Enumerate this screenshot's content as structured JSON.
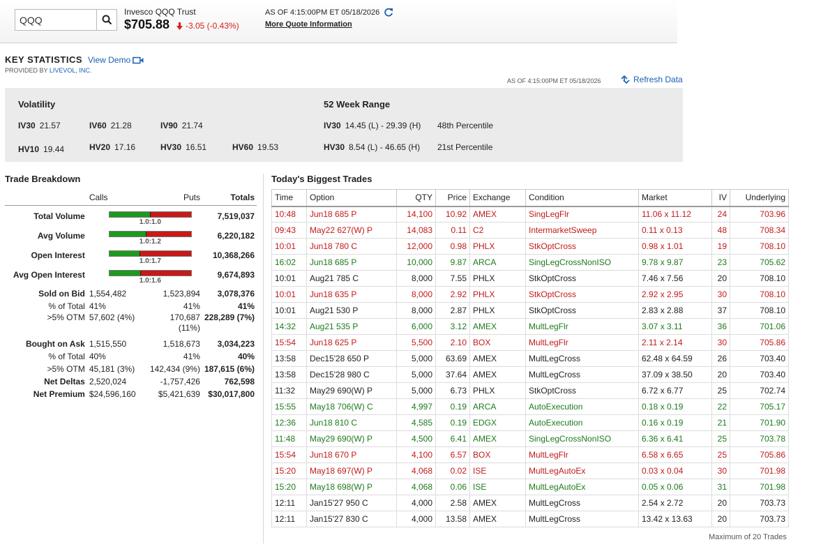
{
  "quote": {
    "search_value": "QQQ",
    "name": "Invesco QQQ Trust",
    "price": "$705.88",
    "change": "-3.05 (-0.43%)",
    "asof": "AS OF 4:15:00PM ET 05/18/2026",
    "more_link": "More Quote Information"
  },
  "key_stats": {
    "title": "KEY STATISTICS",
    "view_demo": "View Demo",
    "provided_prefix": "PROVIDED BY ",
    "provider": "LIVEVOL, INC.",
    "asof": "AS OF 4:15:00PM ET 05/18/2026",
    "refresh": "Refresh Data"
  },
  "volatility": {
    "heading": "Volatility",
    "iv30_label": "IV30",
    "iv30": "21.57",
    "iv60_label": "IV60",
    "iv60": "21.28",
    "iv90_label": "IV90",
    "iv90": "21.74",
    "hv10_label": "HV10",
    "hv10": "19.44",
    "hv20_label": "HV20",
    "hv20": "17.16",
    "hv30_label": "HV30",
    "hv30": "16.51",
    "hv60_label": "HV60",
    "hv60": "19.53"
  },
  "range52": {
    "heading": "52 Week Range",
    "iv30_label": "IV30",
    "iv30": "14.45 (L) - 29.39 (H)",
    "iv30_pct": "48th  Percentile",
    "hv30_label": "HV30",
    "hv30": "8.54 (L) - 46.65 (H)",
    "hv30_pct": "21st  Percentile"
  },
  "trade_breakdown": {
    "title": "Trade Breakdown",
    "headers": {
      "calls": "Calls",
      "puts": "Puts",
      "totals": "Totals"
    },
    "bar_rows": [
      {
        "label": "Total Volume",
        "ratio": "1.0:1.0",
        "calls_fraction": 0.5,
        "total": "7,519,037"
      },
      {
        "label": "Avg Volume",
        "ratio": "1.0:1.2",
        "calls_fraction": 0.45,
        "total": "6,220,182"
      },
      {
        "label": "Open Interest",
        "ratio": "1.0:1.7",
        "calls_fraction": 0.37,
        "total": "10,368,266"
      },
      {
        "label": "Avg Open Interest",
        "ratio": "1.0:1.6",
        "calls_fraction": 0.38,
        "total": "9,674,893"
      }
    ],
    "sold": {
      "label": "Sold on Bid",
      "calls": "1,554,482",
      "puts": "1,523,894",
      "total": "3,078,376",
      "pct_label": "% of Total",
      "pct_calls": "41%",
      "pct_puts": "41%",
      "pct_total": "41%",
      "otm_label": ">5% OTM",
      "otm_calls": "57,602 (4%)",
      "otm_puts": "170,687",
      "otm_puts2": "(11%)",
      "otm_total": "228,289 (7%)"
    },
    "bought": {
      "label": "Bought on Ask",
      "calls": "1,515,550",
      "puts": "1,518,673",
      "total": "3,034,223",
      "pct_label": "% of Total",
      "pct_calls": "40%",
      "pct_puts": "41%",
      "pct_total": "40%",
      "otm_label": ">5% OTM",
      "otm_calls": "45,181 (3%)",
      "otm_puts": "142,434 (9%)",
      "otm_total": "187,615 (6%)"
    },
    "net_deltas": {
      "label": "Net Deltas",
      "calls": "2,520,024",
      "puts": "-1,757,426",
      "total": "762,598"
    },
    "net_premium": {
      "label": "Net Premium",
      "calls": "$24,596,160",
      "puts": "$5,421,639",
      "total": "$30,017,800"
    }
  },
  "biggest_trades": {
    "title": "Today's Biggest Trades",
    "headers": [
      "Time",
      "Option",
      "QTY",
      "Price",
      "Exchange",
      "Condition",
      "Market",
      "IV",
      "Underlying"
    ],
    "rows": [
      {
        "color": "red",
        "time": "10:48",
        "option": "Jun18 685 P",
        "qty": "14,100",
        "price": "10.92",
        "exchange": "AMEX",
        "condition": "SingLegFlr",
        "market": "11.06 x 11.12",
        "iv": "24",
        "underlying": "703.96"
      },
      {
        "color": "red",
        "time": "09:43",
        "option": "May22 627(W) P",
        "qty": "14,083",
        "price": "0.11",
        "exchange": "C2",
        "condition": "IntermarketSweep",
        "market": "0.11 x 0.13",
        "iv": "48",
        "underlying": "708.34"
      },
      {
        "color": "red",
        "time": "10:01",
        "option": "Jun18 780 C",
        "qty": "12,000",
        "price": "0.98",
        "exchange": "PHLX",
        "condition": "StkOptCross",
        "market": "0.98 x 1.01",
        "iv": "19",
        "underlying": "708.10"
      },
      {
        "color": "green",
        "time": "16:02",
        "option": "Jun18 685 P",
        "qty": "10,000",
        "price": "9.87",
        "exchange": "ARCA",
        "condition": "SingLegCrossNonISO",
        "market": "9.78 x 9.87",
        "iv": "23",
        "underlying": "705.62"
      },
      {
        "color": "black",
        "time": "10:01",
        "option": "Aug21 785 C",
        "qty": "8,000",
        "price": "7.55",
        "exchange": "PHLX",
        "condition": "StkOptCross",
        "market": "7.46 x 7.56",
        "iv": "20",
        "underlying": "708.10"
      },
      {
        "color": "red",
        "time": "10:01",
        "option": "Jun18 635 P",
        "qty": "8,000",
        "price": "2.92",
        "exchange": "PHLX",
        "condition": "StkOptCross",
        "market": "2.92 x 2.95",
        "iv": "30",
        "underlying": "708.10"
      },
      {
        "color": "black",
        "time": "10:01",
        "option": "Aug21 530 P",
        "qty": "8,000",
        "price": "2.87",
        "exchange": "PHLX",
        "condition": "StkOptCross",
        "market": "2.83 x 2.88",
        "iv": "37",
        "underlying": "708.10"
      },
      {
        "color": "green",
        "time": "14:32",
        "option": "Aug21 535 P",
        "qty": "6,000",
        "price": "3.12",
        "exchange": "AMEX",
        "condition": "MultLegFlr",
        "market": "3.07 x 3.11",
        "iv": "36",
        "underlying": "701.06"
      },
      {
        "color": "red",
        "time": "15:54",
        "option": "Jun18 625 P",
        "qty": "5,500",
        "price": "2.10",
        "exchange": "BOX",
        "condition": "MultLegFlr",
        "market": "2.11 x 2.14",
        "iv": "30",
        "underlying": "705.86"
      },
      {
        "color": "black",
        "time": "13:58",
        "option": "Dec15'28 650 P",
        "qty": "5,000",
        "price": "63.69",
        "exchange": "AMEX",
        "condition": "MultLegCross",
        "market": "62.48 x 64.59",
        "iv": "26",
        "underlying": "703.40"
      },
      {
        "color": "black",
        "time": "13:58",
        "option": "Dec15'28 980 C",
        "qty": "5,000",
        "price": "37.64",
        "exchange": "AMEX",
        "condition": "MultLegCross",
        "market": "37.09 x 38.50",
        "iv": "20",
        "underlying": "703.40"
      },
      {
        "color": "black",
        "time": "11:32",
        "option": "May29 690(W) P",
        "qty": "5,000",
        "price": "6.73",
        "exchange": "PHLX",
        "condition": "StkOptCross",
        "market": "6.72 x 6.77",
        "iv": "25",
        "underlying": "702.74"
      },
      {
        "color": "green",
        "time": "15:55",
        "option": "May18 706(W) C",
        "qty": "4,997",
        "price": "0.19",
        "exchange": "ARCA",
        "condition": "AutoExecution",
        "market": "0.18 x 0.19",
        "iv": "22",
        "underlying": "705.17"
      },
      {
        "color": "green",
        "time": "12:36",
        "option": "Jun18 810 C",
        "qty": "4,585",
        "price": "0.19",
        "exchange": "EDGX",
        "condition": "AutoExecution",
        "market": "0.16 x 0.19",
        "iv": "21",
        "underlying": "701.90"
      },
      {
        "color": "green",
        "time": "11:48",
        "option": "May29 690(W) P",
        "qty": "4,500",
        "price": "6.41",
        "exchange": "AMEX",
        "condition": "SingLegCrossNonISO",
        "market": "6.36 x 6.41",
        "iv": "25",
        "underlying": "703.78"
      },
      {
        "color": "red",
        "time": "15:54",
        "option": "Jun18 670 P",
        "qty": "4,100",
        "price": "6.57",
        "exchange": "BOX",
        "condition": "MultLegFlr",
        "market": "6.58 x 6.65",
        "iv": "25",
        "underlying": "705.86"
      },
      {
        "color": "red",
        "time": "15:20",
        "option": "May18 697(W) P",
        "qty": "4,068",
        "price": "0.02",
        "exchange": "ISE",
        "condition": "MultLegAutoEx",
        "market": "0.03 x 0.04",
        "iv": "30",
        "underlying": "701.98"
      },
      {
        "color": "green",
        "time": "15:20",
        "option": "May18 698(W) P",
        "qty": "4,068",
        "price": "0.06",
        "exchange": "ISE",
        "condition": "MultLegAutoEx",
        "market": "0.05 x 0.06",
        "iv": "31",
        "underlying": "701.98"
      },
      {
        "color": "black",
        "time": "12:11",
        "option": "Jan15'27 950 C",
        "qty": "4,000",
        "price": "2.58",
        "exchange": "AMEX",
        "condition": "MultLegCross",
        "market": "2.54 x 2.72",
        "iv": "20",
        "underlying": "703.73"
      },
      {
        "color": "black",
        "time": "12:11",
        "option": "Jan15'27 830 C",
        "qty": "4,000",
        "price": "13.58",
        "exchange": "AMEX",
        "condition": "MultLegCross",
        "market": "13.42 x 13.63",
        "iv": "20",
        "underlying": "703.73"
      }
    ],
    "footer": "Maximum of 20 Trades"
  },
  "colors": {
    "red": "#c11b1b",
    "green": "#1d7a1d",
    "link": "#1a5fb4",
    "bar_green": "#1e9a1e",
    "bar_red": "#c91818"
  },
  "icons": [
    "search-icon",
    "down-arrow-icon",
    "refresh-icon",
    "video-camera-icon",
    "refresh-data-icon"
  ]
}
